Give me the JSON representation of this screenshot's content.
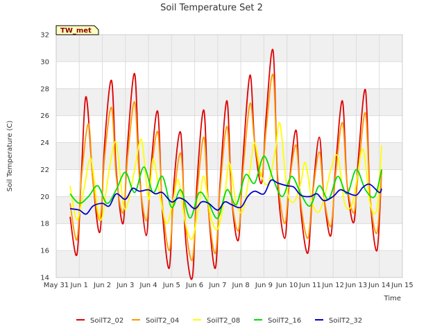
{
  "chart_data": {
    "type": "line",
    "title": "Soil Temperature Set 2",
    "xlabel": "Time",
    "ylabel": "Soil Temperature (C)",
    "badge": "TW_met",
    "xlim": [
      0,
      15
    ],
    "ylim": [
      14,
      32
    ],
    "y_ticks": [
      14,
      16,
      18,
      20,
      22,
      24,
      26,
      28,
      30,
      32
    ],
    "x_ticks": [
      0,
      1,
      2,
      3,
      4,
      5,
      6,
      7,
      8,
      9,
      10,
      11,
      12,
      13,
      14,
      15
    ],
    "x_tick_labels": [
      "May 31",
      "Jun 1",
      "Jun 2",
      "Jun 3",
      "Jun 4",
      "Jun 5",
      "Jun 6",
      "Jun 7",
      "Jun 8",
      "Jun 9",
      "Jun 10",
      "Jun 11",
      "Jun 12",
      "Jun 13",
      "Jun 14",
      "Jun 15"
    ],
    "grid": true,
    "legend_position": "bottom",
    "series": [
      {
        "name": "SoilT2_02",
        "color": "#dd0000",
        "x": [
          0.6,
          0.9,
          1.1,
          1.3,
          1.6,
          1.9,
          2.1,
          2.4,
          2.6,
          2.9,
          3.1,
          3.4,
          3.6,
          3.9,
          4.1,
          4.4,
          4.6,
          4.9,
          5.1,
          5.4,
          5.6,
          5.9,
          6.1,
          6.4,
          6.6,
          6.9,
          7.1,
          7.4,
          7.6,
          7.9,
          8.1,
          8.4,
          8.6,
          8.9,
          9.1,
          9.4,
          9.6,
          9.9,
          10.1,
          10.4,
          10.6,
          10.9,
          11.1,
          11.4,
          11.6,
          11.9,
          12.1,
          12.4,
          12.6,
          12.9,
          13.1,
          13.4,
          13.6,
          13.9,
          14.1
        ],
        "y": [
          18.5,
          15.7,
          22.0,
          27.4,
          21.0,
          17.4,
          24.0,
          28.6,
          22.0,
          18.0,
          24.0,
          29.1,
          22.0,
          17.1,
          22.0,
          26.3,
          19.0,
          14.7,
          21.0,
          24.7,
          17.0,
          14.0,
          21.0,
          26.4,
          19.0,
          14.7,
          21.0,
          27.1,
          20.0,
          16.8,
          23.0,
          29.0,
          24.0,
          21.0,
          26.0,
          30.8,
          21.0,
          16.9,
          21.0,
          24.9,
          19.0,
          15.8,
          20.0,
          24.4,
          20.0,
          17.1,
          22.0,
          27.1,
          21.0,
          18.1,
          23.0,
          27.9,
          20.0,
          16.0,
          22.0
        ]
      },
      {
        "name": "SoilT2_04",
        "color": "#ff9900",
        "x": [
          0.6,
          0.9,
          1.1,
          1.4,
          1.6,
          1.9,
          2.1,
          2.4,
          2.6,
          2.9,
          3.1,
          3.4,
          3.6,
          3.9,
          4.1,
          4.4,
          4.6,
          4.9,
          5.1,
          5.4,
          5.6,
          5.9,
          6.1,
          6.4,
          6.6,
          6.9,
          7.1,
          7.4,
          7.6,
          7.9,
          8.1,
          8.4,
          8.6,
          8.9,
          9.1,
          9.4,
          9.6,
          9.9,
          10.1,
          10.4,
          10.6,
          10.9,
          11.1,
          11.4,
          11.6,
          11.9,
          12.1,
          12.4,
          12.6,
          12.9,
          13.1,
          13.4,
          13.6,
          13.9,
          14.1
        ],
        "y": [
          19.5,
          16.8,
          21.5,
          25.4,
          21.0,
          18.3,
          23.0,
          26.6,
          21.5,
          18.8,
          23.0,
          27.0,
          21.5,
          18.2,
          21.5,
          24.8,
          19.5,
          16.0,
          20.0,
          23.2,
          18.0,
          15.3,
          20.0,
          24.4,
          19.0,
          15.8,
          20.5,
          25.2,
          20.0,
          17.5,
          22.0,
          26.9,
          24.0,
          21.5,
          25.0,
          29.0,
          21.5,
          18.0,
          21.0,
          23.8,
          19.5,
          16.9,
          20.0,
          23.3,
          20.0,
          17.8,
          21.5,
          25.5,
          21.0,
          18.8,
          22.0,
          26.2,
          20.0,
          17.3,
          22.0
        ]
      },
      {
        "name": "SoilT2_08",
        "color": "#ffff00",
        "x": [
          0.6,
          0.9,
          1.2,
          1.5,
          1.8,
          2.0,
          2.3,
          2.6,
          2.9,
          3.1,
          3.4,
          3.7,
          4.0,
          4.2,
          4.5,
          4.8,
          5.1,
          5.3,
          5.6,
          5.9,
          6.2,
          6.4,
          6.7,
          7.0,
          7.3,
          7.5,
          7.8,
          8.1,
          8.4,
          8.6,
          8.9,
          9.2,
          9.5,
          9.7,
          10.0,
          10.3,
          10.6,
          10.8,
          11.1,
          11.4,
          11.7,
          11.9,
          12.2,
          12.5,
          12.8,
          13.0,
          13.3,
          13.6,
          13.9,
          14.1
        ],
        "y": [
          20.8,
          18.3,
          20.5,
          22.8,
          19.0,
          18.5,
          22.0,
          24.0,
          19.5,
          19.5,
          22.0,
          24.2,
          19.8,
          22.8,
          20.0,
          18.0,
          20.0,
          21.2,
          18.0,
          16.9,
          19.5,
          21.5,
          18.5,
          17.6,
          20.0,
          22.5,
          19.5,
          19.0,
          22.0,
          24.0,
          21.5,
          21.0,
          23.5,
          25.4,
          20.5,
          19.6,
          21.0,
          22.5,
          19.5,
          18.9,
          20.5,
          22.0,
          23.0,
          19.5,
          19.3,
          21.0,
          23.5,
          19.5,
          19.1,
          23.8
        ]
      },
      {
        "name": "SoilT2_16",
        "color": "#00dd00",
        "x": [
          0.6,
          1.0,
          1.4,
          1.8,
          2.2,
          2.6,
          3.0,
          3.4,
          3.8,
          4.2,
          4.6,
          5.0,
          5.4,
          5.8,
          6.2,
          6.6,
          7.0,
          7.4,
          7.8,
          8.2,
          8.6,
          9.0,
          9.4,
          9.8,
          10.2,
          10.6,
          11.0,
          11.4,
          11.8,
          12.2,
          12.6,
          13.0,
          13.4,
          13.8,
          14.1
        ],
        "y": [
          20.2,
          19.5,
          20.0,
          20.8,
          19.5,
          20.5,
          21.8,
          20.3,
          22.2,
          20.3,
          21.5,
          19.2,
          20.5,
          18.4,
          20.3,
          19.5,
          18.4,
          20.5,
          19.4,
          21.6,
          21.0,
          23.0,
          21.3,
          20.0,
          21.5,
          20.2,
          19.3,
          20.8,
          19.8,
          21.5,
          20.2,
          22.0,
          20.5,
          20.0,
          22.0
        ]
      },
      {
        "name": "SoilT2_32",
        "color": "#0000cc",
        "x": [
          0.6,
          1.0,
          1.3,
          1.6,
          2.0,
          2.3,
          2.6,
          3.0,
          3.3,
          3.6,
          4.0,
          4.3,
          4.6,
          5.0,
          5.3,
          5.6,
          6.0,
          6.3,
          6.6,
          7.0,
          7.3,
          7.6,
          8.0,
          8.3,
          8.6,
          9.0,
          9.3,
          9.6,
          10.0,
          10.3,
          10.6,
          11.0,
          11.3,
          11.6,
          12.0,
          12.3,
          12.6,
          13.0,
          13.3,
          13.6,
          14.0,
          14.1
        ],
        "y": [
          19.1,
          19.0,
          18.7,
          19.3,
          19.5,
          19.3,
          20.2,
          19.8,
          20.6,
          20.4,
          20.5,
          20.2,
          20.3,
          19.6,
          19.9,
          19.7,
          19.1,
          19.6,
          19.5,
          19.0,
          19.6,
          19.4,
          19.2,
          20.0,
          20.4,
          20.2,
          21.2,
          21.0,
          20.8,
          20.7,
          20.1,
          20.0,
          20.2,
          19.7,
          20.0,
          20.5,
          20.3,
          20.1,
          20.7,
          20.9,
          20.3,
          20.6
        ]
      }
    ]
  }
}
